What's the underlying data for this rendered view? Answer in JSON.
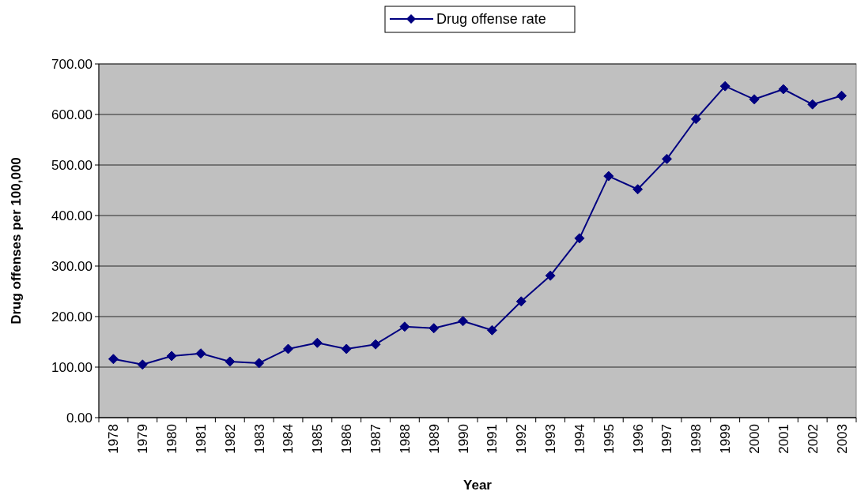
{
  "chart_data": {
    "type": "line",
    "xlabel": "Year",
    "ylabel": "Drug offenses per 100,000",
    "categories": [
      "1978",
      "1979",
      "1980",
      "1981",
      "1982",
      "1983",
      "1984",
      "1985",
      "1986",
      "1987",
      "1988",
      "1989",
      "1990",
      "1991",
      "1992",
      "1993",
      "1994",
      "1995",
      "1996",
      "1997",
      "1998",
      "1999",
      "2000",
      "2001",
      "2002",
      "2003"
    ],
    "series": [
      {
        "name": "Drug offense rate",
        "color": "#000080",
        "values": [
          116,
          105,
          122,
          127,
          111,
          108,
          136,
          148,
          136,
          145,
          180,
          177,
          191,
          173,
          230,
          281,
          355,
          478,
          452,
          512,
          591,
          656,
          630,
          650,
          620,
          637
        ]
      }
    ],
    "ylim": [
      0,
      700
    ],
    "yticks": [
      {
        "value": 0,
        "label": "0.00"
      },
      {
        "value": 100,
        "label": "100.00"
      },
      {
        "value": 200,
        "label": "200.00"
      },
      {
        "value": 300,
        "label": "300.00"
      },
      {
        "value": 400,
        "label": "400.00"
      },
      {
        "value": 500,
        "label": "500.00"
      },
      {
        "value": 600,
        "label": "600.00"
      },
      {
        "value": 700,
        "label": "700.00"
      }
    ],
    "grid": "y",
    "legend": "top",
    "marker": "diamond",
    "line_style": "solid"
  }
}
